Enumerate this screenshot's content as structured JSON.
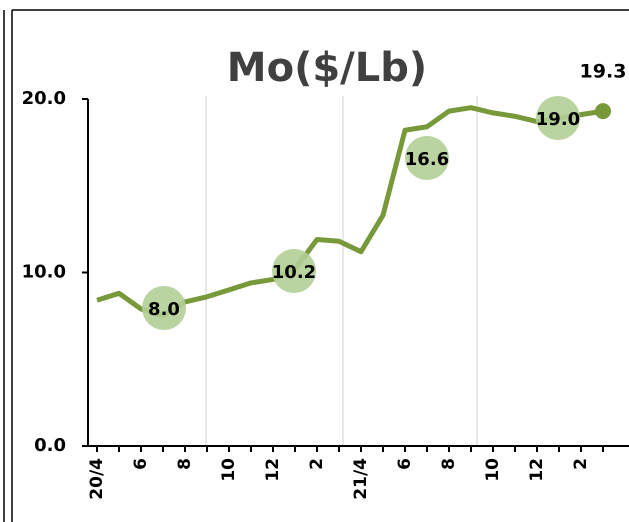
{
  "chart_data": {
    "type": "line",
    "title": "Mo($/Lb)",
    "categories": [
      "20/4",
      null,
      "6",
      null,
      "8",
      null,
      "10",
      null,
      "12",
      null,
      "2",
      null,
      "21/4",
      null,
      "6",
      null,
      "8",
      null,
      "10",
      null,
      "12",
      null,
      "2",
      null
    ],
    "series": [
      {
        "name": "Mo",
        "color": "#77993a",
        "values": [
          8.4,
          8.8,
          7.9,
          7.5,
          8.3,
          8.6,
          9.0,
          9.4,
          9.6,
          10.2,
          11.9,
          11.8,
          11.2,
          13.3,
          18.2,
          18.4,
          19.3,
          19.5,
          19.2,
          19.0,
          18.7,
          18.9,
          19.1,
          19.3
        ],
        "value_labels": [
          null,
          null,
          null,
          null,
          null,
          null,
          null,
          null,
          null,
          null,
          null,
          null,
          null,
          null,
          null,
          null,
          null,
          null,
          null,
          null,
          null,
          null,
          null,
          "19.3"
        ]
      }
    ],
    "annotations": [
      "8.0",
      "10.2",
      "16.6",
      "19.0"
    ],
    "ylim": [
      0,
      20
    ],
    "yticks": [
      {
        "value": 0,
        "label": "0.0"
      },
      {
        "value": 10,
        "label": "10.0"
      },
      {
        "value": 20,
        "label": "20.0"
      }
    ]
  }
}
